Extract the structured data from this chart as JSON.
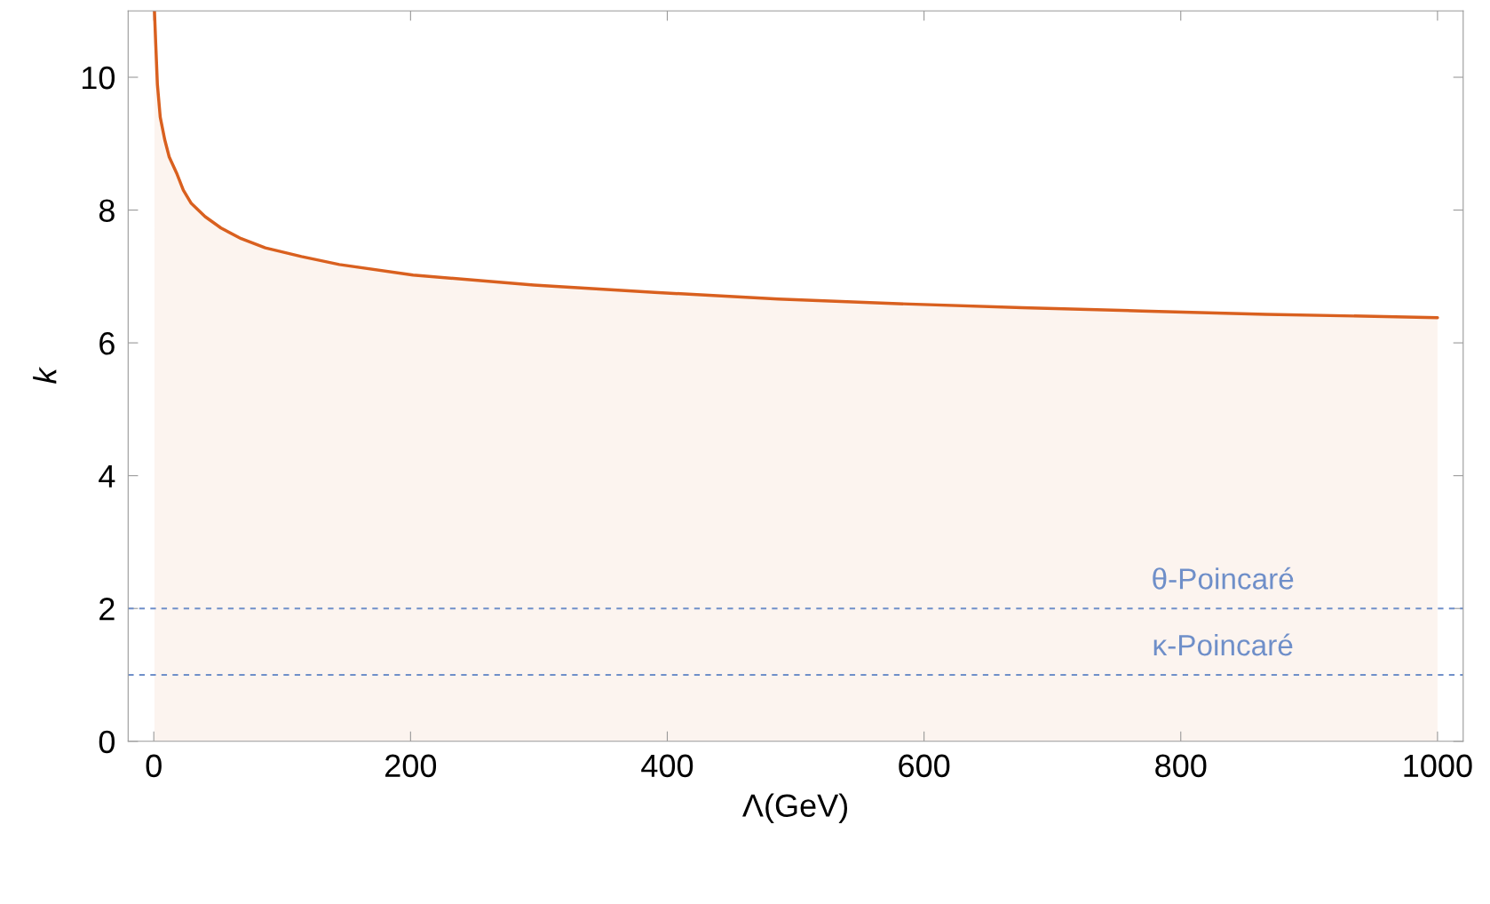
{
  "chart_data": {
    "type": "area",
    "xlabel": "Λ(GeV)",
    "ylabel": "k",
    "xlim": [
      -20,
      1020
    ],
    "ylim": [
      0,
      11
    ],
    "xticks": [
      0,
      200,
      400,
      600,
      800,
      1000
    ],
    "yticks": [
      0,
      2,
      4,
      6,
      8,
      10
    ],
    "grid": false,
    "series": [
      {
        "color": "#d9601f",
        "x": [
          0.5,
          1.5,
          2.8,
          5,
          8.5,
          12,
          17.7,
          23,
          29.2,
          40,
          52.3,
          68,
          86.9,
          115,
          144.5,
          202,
          296,
          390,
          486.5,
          580,
          676.6,
          770,
          866.6,
          1000
        ],
        "values": [
          11,
          10.5,
          9.89,
          9.4,
          9.06,
          8.8,
          8.56,
          8.3,
          8.1,
          7.9,
          7.73,
          7.57,
          7.43,
          7.3,
          7.18,
          7.02,
          6.87,
          6.76,
          6.66,
          6.59,
          6.53,
          6.48,
          6.43,
          6.38
        ]
      }
    ],
    "ref_lines": [
      {
        "axis": "y",
        "value": 2,
        "label": "θ-Poincaré",
        "color": "#6f8fc9",
        "line_style": "dashed"
      },
      {
        "axis": "y",
        "value": 1,
        "label": "κ-Poincaré",
        "color": "#6f8fc9",
        "line_style": "dashed"
      }
    ]
  }
}
